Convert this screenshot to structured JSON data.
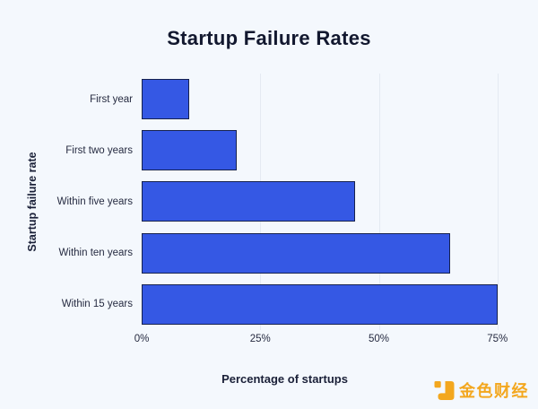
{
  "chart_data": {
    "type": "bar",
    "orientation": "horizontal",
    "title": "Startup Failure Rates",
    "categories": [
      "First year",
      "First two years",
      "Within five years",
      "Within ten years",
      "Within 15 years"
    ],
    "values": [
      10,
      20,
      45,
      65,
      75
    ],
    "xlabel": "Percentage of startups",
    "ylabel": "Startup failure rate",
    "x_ticks": [
      0,
      25,
      50,
      75
    ],
    "x_tick_labels": [
      "0%",
      "25%",
      "50%",
      "75%"
    ],
    "xlim": [
      0,
      79.2
    ],
    "grid": "vertical-only",
    "legend": "none",
    "bar_color": "#3558e4",
    "bar_border_color": "#16224e",
    "background_color": "#f4f8fd",
    "gridline_color": "#e4eaf2"
  },
  "watermark": {
    "text": "金色财经",
    "color": "#f3a71e",
    "logo": "jinse-finance-logo"
  }
}
